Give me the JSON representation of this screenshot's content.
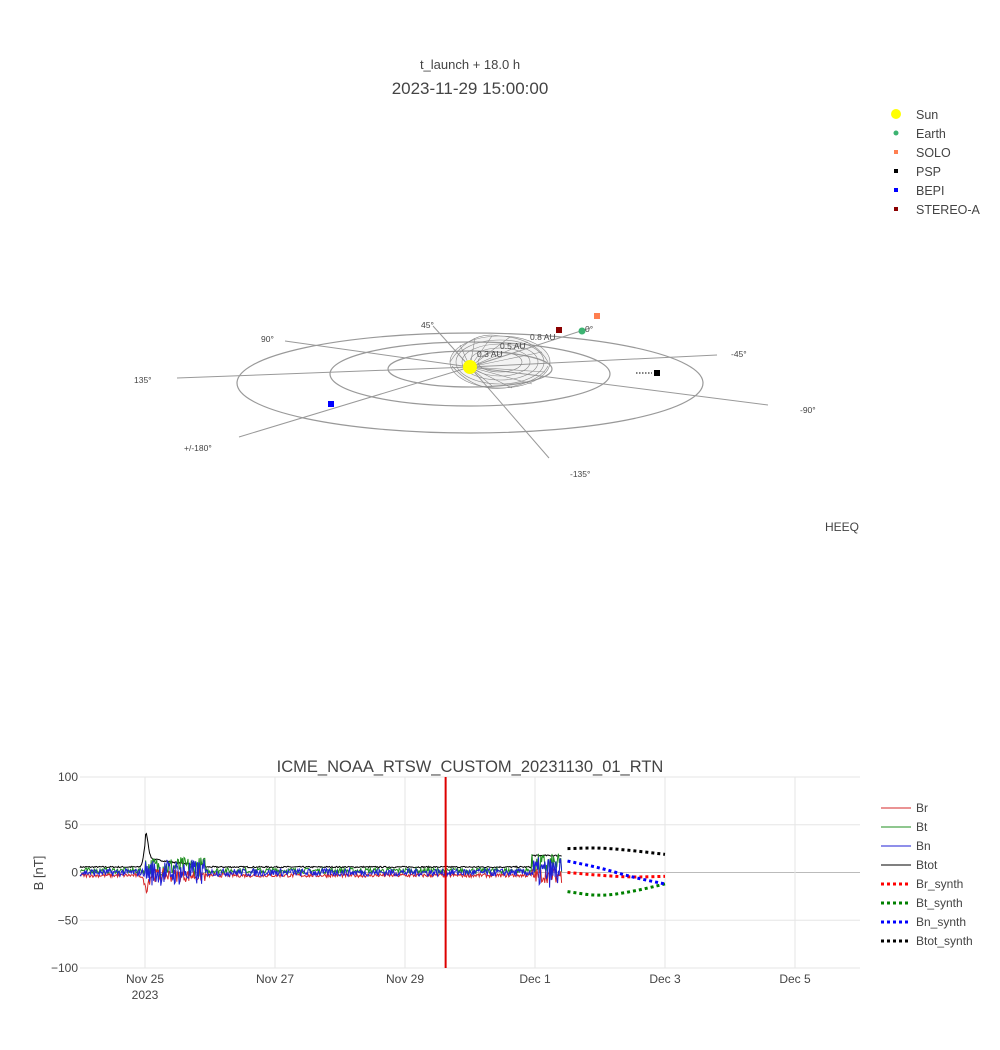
{
  "orbit_panel": {
    "subtitle": "t_launch + 18.0 h",
    "title": "2023-11-29 15:00:00",
    "frame_label": "HEEQ",
    "ring_labels": [
      "0.3 AU",
      "0.5 AU",
      "0.8 AU"
    ],
    "angle_labels": [
      "0°",
      "45°",
      "90°",
      "135°",
      "+/-180°",
      "-135°",
      "-90°",
      "-45°"
    ],
    "legend": [
      {
        "name": "Sun",
        "color": "#ffff00",
        "marker": "circle-large"
      },
      {
        "name": "Earth",
        "color": "#3cb371",
        "marker": "circle"
      },
      {
        "name": "SOLO",
        "color": "#ff7f50",
        "marker": "square"
      },
      {
        "name": "PSP",
        "color": "#000000",
        "marker": "square"
      },
      {
        "name": "BEPI",
        "color": "#0000ff",
        "marker": "square"
      },
      {
        "name": "STEREO-A",
        "color": "#8b0000",
        "marker": "square"
      }
    ]
  },
  "chart_data": {
    "type": "line",
    "title": "ICME_NOAA_RTSW_CUSTOM_20231130_01_RTN",
    "xlabel": "",
    "ylabel": "B [nT]",
    "ylim": [
      -100,
      100
    ],
    "yticks": [
      100,
      50,
      0,
      -50,
      -100
    ],
    "yticklabels": [
      "100",
      "50",
      "0",
      "−50",
      "−100"
    ],
    "xlim": [
      "2023-11-24T00:00",
      "2023-12-06T00:00"
    ],
    "xticks": [
      "2023-11-25",
      "2023-11-27",
      "2023-11-29",
      "2023-12-01",
      "2023-12-03",
      "2023-12-05"
    ],
    "xticklabels": [
      "Nov 25",
      "Nov 27",
      "Nov 29",
      "Dec 1",
      "Dec 3",
      "Dec 5"
    ],
    "xtick_year": "2023",
    "grid": true,
    "legend_position": "right",
    "vline": {
      "x": "2023-11-29T15:00",
      "color": "#dd0000"
    },
    "observed": {
      "x_start": "2023-11-24T00:00",
      "x_end": "2023-12-01T10:00",
      "series": [
        {
          "name": "Br",
          "color": "#d62728"
        },
        {
          "name": "Bt",
          "color": "#1f8f1f"
        },
        {
          "name": "Bn",
          "color": "#1f1fd6"
        },
        {
          "name": "Btot",
          "color": "#000000"
        }
      ]
    },
    "synthetic": {
      "x": [
        "2023-12-01T12:00",
        "2023-12-02T00:00",
        "2023-12-02T12:00",
        "2023-12-03T00:00"
      ],
      "series": [
        {
          "name": "Br_synth",
          "color": "#ff0000",
          "values": [
            0,
            -3,
            -5,
            -4
          ]
        },
        {
          "name": "Bt_synth",
          "color": "#008000",
          "values": [
            -20,
            -25,
            -20,
            -12
          ]
        },
        {
          "name": "Bn_synth",
          "color": "#0000ff",
          "values": [
            12,
            5,
            -5,
            -12
          ]
        },
        {
          "name": "Btot_synth",
          "color": "#000000",
          "values": [
            25,
            26,
            23,
            19
          ]
        }
      ]
    }
  }
}
